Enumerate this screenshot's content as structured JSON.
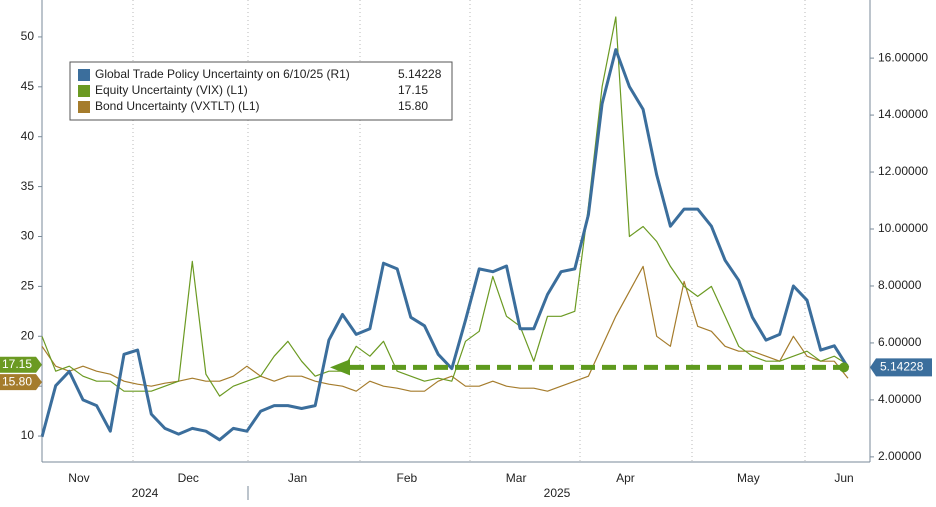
{
  "chart_data": {
    "type": "line",
    "categories": [
      null,
      null,
      null,
      "Nov",
      null,
      null,
      null,
      null,
      null,
      null,
      null,
      "Dec",
      null,
      null,
      null,
      null,
      null,
      null,
      null,
      "Jan",
      null,
      null,
      null,
      null,
      null,
      null,
      null,
      "Feb",
      null,
      null,
      null,
      null,
      null,
      null,
      null,
      "Mar",
      null,
      null,
      null,
      null,
      null,
      null,
      null,
      "Apr",
      null,
      null,
      null,
      null,
      null,
      null,
      null,
      null,
      "May",
      null,
      null,
      null,
      null,
      null,
      null,
      "Jun"
    ],
    "years": [
      "2024",
      "2025"
    ],
    "ylim": [
      7.4,
      53.7
    ],
    "yticks": [
      10,
      15,
      20,
      25,
      30,
      35,
      40,
      45,
      50
    ],
    "y2lim": [
      1.82,
      18.04
    ],
    "y2ticks": [
      {
        "value": 2,
        "label": "2.00000"
      },
      {
        "value": 4,
        "label": "4.00000"
      },
      {
        "value": 6,
        "label": "6.00000"
      },
      {
        "value": 8,
        "label": "8.00000"
      },
      {
        "value": 10,
        "label": "10.00000"
      },
      {
        "value": 12,
        "label": "12.00000"
      },
      {
        "value": 14,
        "label": "14.00000"
      },
      {
        "value": 16,
        "label": "16.00000"
      }
    ],
    "legend": "upper left",
    "series": [
      {
        "name": "Global Trade Policy Uncertainty on 6/10/25 (R1)",
        "color": "#3b6e9c",
        "axis": "y2",
        "last_value_label": "5.14228",
        "values": [
          2.7,
          4.5,
          5.0,
          4.0,
          3.8,
          2.9,
          5.6,
          5.75,
          3.5,
          3.0,
          2.8,
          3.0,
          2.9,
          2.6,
          3.0,
          2.9,
          3.6,
          3.8,
          3.8,
          3.7,
          3.8,
          6.1,
          7.0,
          6.3,
          6.5,
          8.8,
          8.6,
          6.9,
          6.6,
          5.6,
          5.1,
          6.8,
          8.6,
          8.5,
          8.7,
          6.5,
          6.5,
          7.7,
          8.5,
          8.6,
          10.5,
          14.4,
          16.3,
          15.0,
          14.2,
          11.9,
          10.1,
          10.7,
          10.7,
          10.1,
          8.9,
          8.2,
          6.9,
          6.1,
          6.3,
          8.0,
          7.5,
          5.75,
          5.9,
          5.14228
        ]
      },
      {
        "name": "Equity Uncertainty (VIX) (L1)",
        "color": "#6b9a22",
        "last_value_label": "17.15",
        "values": [
          20,
          16.5,
          17,
          16,
          15.5,
          15.5,
          14.5,
          14.5,
          14.5,
          15,
          15.5,
          27.5,
          16.2,
          14,
          15,
          15.5,
          16,
          18,
          19.5,
          17.5,
          16,
          16.5,
          16.5,
          19,
          18,
          19.5,
          16.5,
          16,
          15.5,
          15.8,
          15.5,
          19.5,
          20.5,
          26,
          22,
          21,
          17.5,
          22,
          22,
          22.5,
          33,
          45,
          52,
          30,
          31,
          29.5,
          27,
          25,
          24,
          25,
          22,
          19,
          18,
          17.5,
          17.5,
          18,
          18.5,
          17.5,
          18,
          17.15
        ]
      },
      {
        "name": "Bond Uncertainty (VXTLT) (L1)",
        "color": "#a57c2c",
        "last_value_label": "15.80",
        "values": [
          19,
          17,
          16.5,
          17,
          16.5,
          16.2,
          15.5,
          15.2,
          15,
          15.3,
          15.5,
          15.8,
          15.5,
          15.5,
          16,
          17,
          16,
          15.5,
          16,
          16,
          15.5,
          15.2,
          15,
          14.5,
          15.5,
          15,
          14.8,
          14.5,
          14.5,
          15.5,
          16,
          15,
          15,
          15.5,
          15,
          14.8,
          14.8,
          14.5,
          15,
          15.5,
          16,
          19,
          22,
          24.5,
          27,
          20,
          19,
          25.5,
          21,
          20.5,
          19,
          18.5,
          18.5,
          18,
          17.5,
          20,
          18,
          17.5,
          17.5,
          15.8
        ]
      }
    ]
  }
}
